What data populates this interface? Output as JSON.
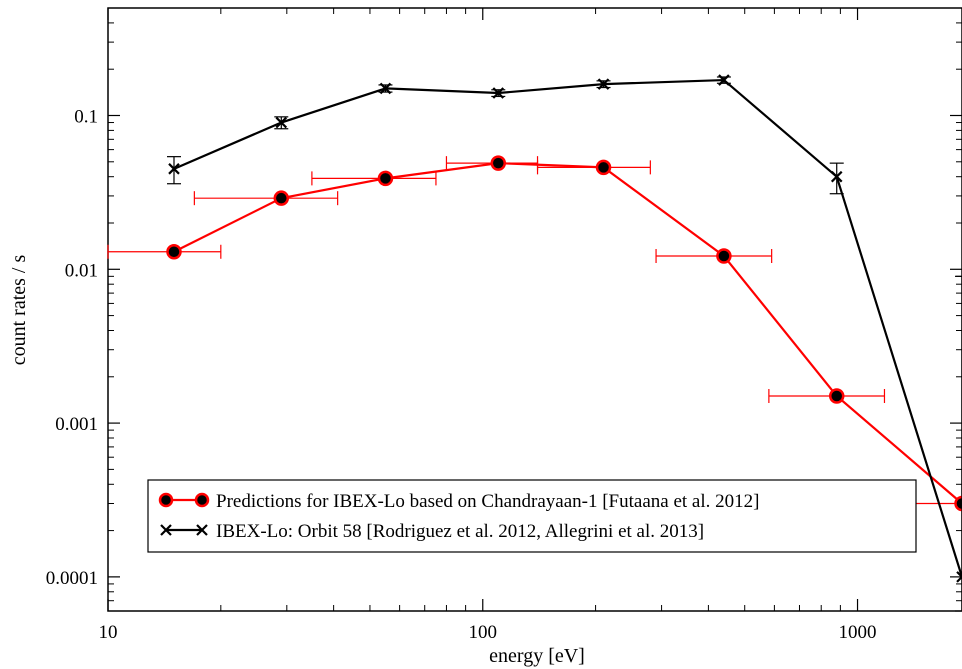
{
  "chart_data": {
    "type": "line",
    "xlabel": "energy [eV]",
    "ylabel": "count rates / s",
    "xscale": "log",
    "yscale": "log",
    "xlim": [
      10,
      1900
    ],
    "ylim": [
      6e-05,
      0.5
    ],
    "x_ticks": [
      {
        "value": 10,
        "label": "10"
      },
      {
        "value": 100,
        "label": "100"
      },
      {
        "value": 1000,
        "label": "1000"
      }
    ],
    "y_ticks": [
      {
        "value": 0.0001,
        "label": "0.0001"
      },
      {
        "value": 0.001,
        "label": "0.001"
      },
      {
        "value": 0.01,
        "label": "0.01"
      },
      {
        "value": 0.1,
        "label": "0.1"
      }
    ],
    "grid": false,
    "legend_position": "bottom-right",
    "series": [
      {
        "name": "Predictions for IBEX-Lo based on Chandrayaan-1 [Futaana et al. 2012]",
        "color": "#ff0000",
        "marker": "circle",
        "error_bars": "horizontal",
        "points": [
          {
            "x": 15,
            "y": 0.013,
            "x_low": 10,
            "x_high": 20
          },
          {
            "x": 29,
            "y": 0.029,
            "x_low": 17,
            "x_high": 41
          },
          {
            "x": 55,
            "y": 0.039,
            "x_low": 35,
            "x_high": 75
          },
          {
            "x": 110,
            "y": 0.049,
            "x_low": 80,
            "x_high": 140
          },
          {
            "x": 210,
            "y": 0.046,
            "x_low": 140,
            "x_high": 280
          },
          {
            "x": 440,
            "y": 0.0122,
            "x_low": 290,
            "x_high": 590
          },
          {
            "x": 880,
            "y": 0.0015,
            "x_low": 580,
            "x_high": 1180
          },
          {
            "x": 1900,
            "y": 0.0003,
            "x_low": 1200,
            "x_high": 2600
          }
        ]
      },
      {
        "name": "IBEX-Lo: Orbit 58 [Rodriguez et al. 2012, Allegrini et al. 2013]",
        "color": "#000000",
        "marker": "x",
        "error_bars": "vertical",
        "points": [
          {
            "x": 15,
            "y": 0.045,
            "y_low": 0.036,
            "y_high": 0.054
          },
          {
            "x": 29,
            "y": 0.09,
            "y_low": 0.082,
            "y_high": 0.098
          },
          {
            "x": 55,
            "y": 0.15,
            "y_low": 0.142,
            "y_high": 0.158
          },
          {
            "x": 110,
            "y": 0.14,
            "y_low": 0.133,
            "y_high": 0.147
          },
          {
            "x": 210,
            "y": 0.16,
            "y_low": 0.152,
            "y_high": 0.168
          },
          {
            "x": 440,
            "y": 0.17,
            "y_low": 0.162,
            "y_high": 0.178
          },
          {
            "x": 880,
            "y": 0.04,
            "y_low": 0.031,
            "y_high": 0.049
          },
          {
            "x": 1900,
            "y": 0.0001,
            "y_low": 6e-05,
            "y_high": 0.009
          }
        ]
      }
    ]
  }
}
